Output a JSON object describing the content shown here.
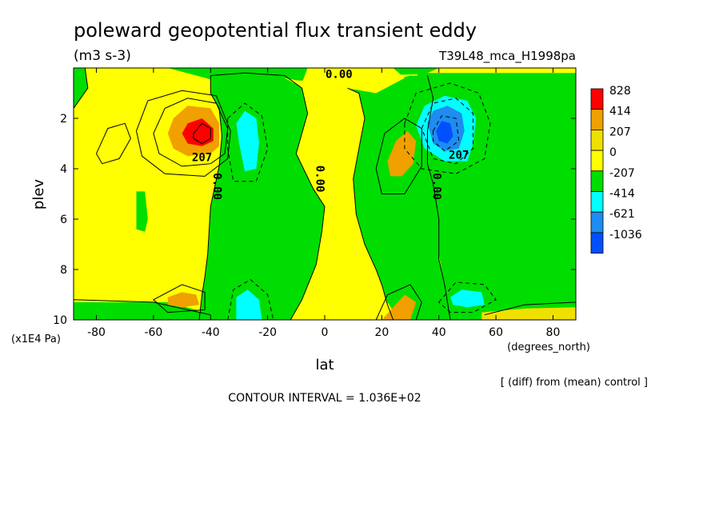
{
  "chart_data": {
    "type": "heatmap",
    "title": "poleward geopotential flux transient eddy",
    "units": "(m3 s-3)",
    "experiment": "T39L48_mca_H1998pa",
    "xlabel": "lat",
    "x_units": "(degrees_north)",
    "ylabel": "plev",
    "y_units": "(x1E4 Pa)",
    "xlim": [
      -88,
      88
    ],
    "ylim": [
      10,
      0
    ],
    "x_ticks": [
      -80,
      -60,
      -40,
      -20,
      0,
      20,
      40,
      60,
      80
    ],
    "x_tick_labels": [
      "-80",
      "-60",
      "-40",
      "-20",
      "0",
      "20",
      "40",
      "60",
      "80"
    ],
    "y_ticks": [
      2,
      4,
      6,
      8,
      10
    ],
    "y_tick_labels": [
      "2",
      "4",
      "6",
      "8",
      "10"
    ],
    "note": "[ (diff) from (mean) control ]",
    "contour_interval_label": "CONTOUR INTERVAL = 1.036E+02",
    "colorbar": {
      "levels": [
        "828",
        "414",
        "207",
        "0",
        "-207",
        "-414",
        "-621",
        "-1036"
      ],
      "colors": [
        "#ff0000",
        "#f0a000",
        "#f0e000",
        "#ffff00",
        "#00dd00",
        "#00ffff",
        "#1e8cf0",
        "#0050ff"
      ]
    },
    "contour_labels": [
      {
        "text": "0.00",
        "lat": 5,
        "plev": 0.4
      },
      {
        "text": "207",
        "lat": -43,
        "plev": 3.7
      },
      {
        "text": "207",
        "lat": 47,
        "plev": 3.6
      },
      {
        "text": "0.00",
        "lat": -39,
        "plev": 4.7
      },
      {
        "text": "0.00",
        "lat": -3,
        "plev": 4.4
      },
      {
        "text": "0.00",
        "lat": 38,
        "plev": 4.7
      }
    ],
    "features": [
      {
        "lat": -44,
        "plev": 2.6,
        "value": 828,
        "sign": "positive"
      },
      {
        "lat": 42,
        "plev": 2.6,
        "value": -621,
        "sign": "negative"
      },
      {
        "lat": 27,
        "plev": 3.2,
        "value": 207,
        "sign": "positive"
      },
      {
        "lat": -48,
        "plev": 9.1,
        "value": 207,
        "sign": "positive"
      },
      {
        "lat": 28,
        "plev": 9.3,
        "value": 207,
        "sign": "positive"
      },
      {
        "lat": -24,
        "plev": 9.3,
        "value": -207,
        "sign": "negative"
      },
      {
        "lat": 50,
        "plev": 9.0,
        "value": -414,
        "sign": "negative"
      },
      {
        "lat": -25,
        "plev": 2.9,
        "value": -207,
        "sign": "negative"
      }
    ]
  }
}
